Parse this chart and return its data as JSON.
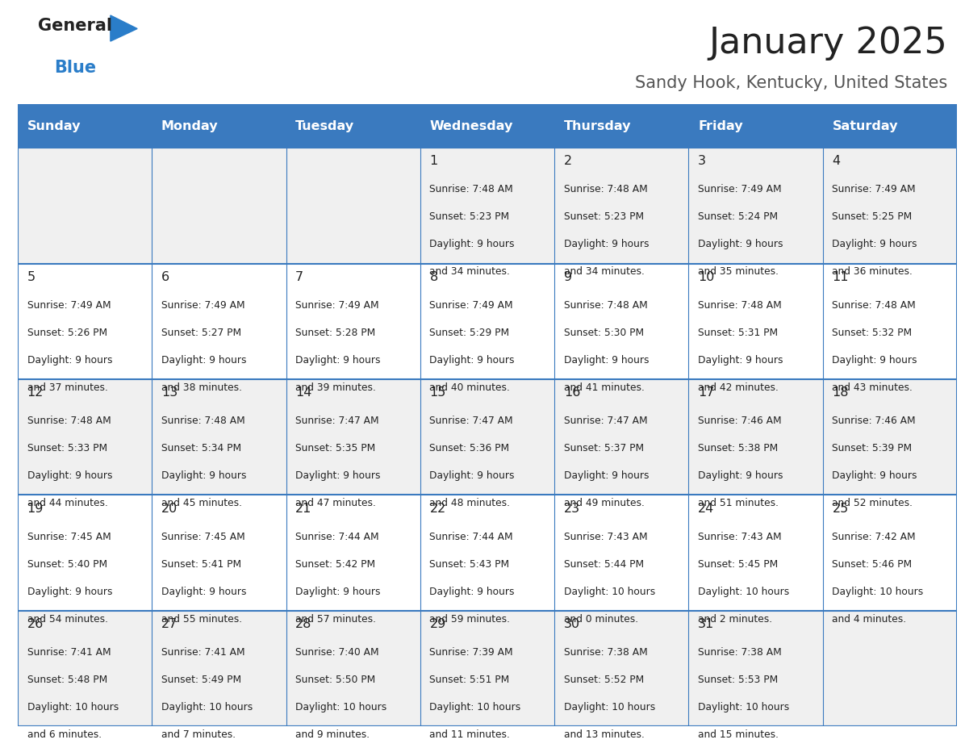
{
  "title": "January 2025",
  "subtitle": "Sandy Hook, Kentucky, United States",
  "days_of_week": [
    "Sunday",
    "Monday",
    "Tuesday",
    "Wednesday",
    "Thursday",
    "Friday",
    "Saturday"
  ],
  "header_bg": "#3a7abf",
  "header_text": "#ffffff",
  "row_bg_odd": "#f0f0f0",
  "row_bg_even": "#ffffff",
  "cell_border": "#3a7abf",
  "day_num_color": "#222222",
  "content_color": "#222222",
  "title_color": "#222222",
  "subtitle_color": "#555555",
  "logo_general_color": "#222222",
  "logo_blue_color": "#2a7dc9",
  "logo_triangle_color": "#2a7dc9",
  "calendar_data": [
    [
      null,
      null,
      null,
      {
        "day": 1,
        "sunrise": "7:48 AM",
        "sunset": "5:23 PM",
        "daylight_h": "9 hours",
        "daylight_m": "and 34 minutes."
      },
      {
        "day": 2,
        "sunrise": "7:48 AM",
        "sunset": "5:23 PM",
        "daylight_h": "9 hours",
        "daylight_m": "and 34 minutes."
      },
      {
        "day": 3,
        "sunrise": "7:49 AM",
        "sunset": "5:24 PM",
        "daylight_h": "9 hours",
        "daylight_m": "and 35 minutes."
      },
      {
        "day": 4,
        "sunrise": "7:49 AM",
        "sunset": "5:25 PM",
        "daylight_h": "9 hours",
        "daylight_m": "and 36 minutes."
      }
    ],
    [
      {
        "day": 5,
        "sunrise": "7:49 AM",
        "sunset": "5:26 PM",
        "daylight_h": "9 hours",
        "daylight_m": "and 37 minutes."
      },
      {
        "day": 6,
        "sunrise": "7:49 AM",
        "sunset": "5:27 PM",
        "daylight_h": "9 hours",
        "daylight_m": "and 38 minutes."
      },
      {
        "day": 7,
        "sunrise": "7:49 AM",
        "sunset": "5:28 PM",
        "daylight_h": "9 hours",
        "daylight_m": "and 39 minutes."
      },
      {
        "day": 8,
        "sunrise": "7:49 AM",
        "sunset": "5:29 PM",
        "daylight_h": "9 hours",
        "daylight_m": "and 40 minutes."
      },
      {
        "day": 9,
        "sunrise": "7:48 AM",
        "sunset": "5:30 PM",
        "daylight_h": "9 hours",
        "daylight_m": "and 41 minutes."
      },
      {
        "day": 10,
        "sunrise": "7:48 AM",
        "sunset": "5:31 PM",
        "daylight_h": "9 hours",
        "daylight_m": "and 42 minutes."
      },
      {
        "day": 11,
        "sunrise": "7:48 AM",
        "sunset": "5:32 PM",
        "daylight_h": "9 hours",
        "daylight_m": "and 43 minutes."
      }
    ],
    [
      {
        "day": 12,
        "sunrise": "7:48 AM",
        "sunset": "5:33 PM",
        "daylight_h": "9 hours",
        "daylight_m": "and 44 minutes."
      },
      {
        "day": 13,
        "sunrise": "7:48 AM",
        "sunset": "5:34 PM",
        "daylight_h": "9 hours",
        "daylight_m": "and 45 minutes."
      },
      {
        "day": 14,
        "sunrise": "7:47 AM",
        "sunset": "5:35 PM",
        "daylight_h": "9 hours",
        "daylight_m": "and 47 minutes."
      },
      {
        "day": 15,
        "sunrise": "7:47 AM",
        "sunset": "5:36 PM",
        "daylight_h": "9 hours",
        "daylight_m": "and 48 minutes."
      },
      {
        "day": 16,
        "sunrise": "7:47 AM",
        "sunset": "5:37 PM",
        "daylight_h": "9 hours",
        "daylight_m": "and 49 minutes."
      },
      {
        "day": 17,
        "sunrise": "7:46 AM",
        "sunset": "5:38 PM",
        "daylight_h": "9 hours",
        "daylight_m": "and 51 minutes."
      },
      {
        "day": 18,
        "sunrise": "7:46 AM",
        "sunset": "5:39 PM",
        "daylight_h": "9 hours",
        "daylight_m": "and 52 minutes."
      }
    ],
    [
      {
        "day": 19,
        "sunrise": "7:45 AM",
        "sunset": "5:40 PM",
        "daylight_h": "9 hours",
        "daylight_m": "and 54 minutes."
      },
      {
        "day": 20,
        "sunrise": "7:45 AM",
        "sunset": "5:41 PM",
        "daylight_h": "9 hours",
        "daylight_m": "and 55 minutes."
      },
      {
        "day": 21,
        "sunrise": "7:44 AM",
        "sunset": "5:42 PM",
        "daylight_h": "9 hours",
        "daylight_m": "and 57 minutes."
      },
      {
        "day": 22,
        "sunrise": "7:44 AM",
        "sunset": "5:43 PM",
        "daylight_h": "9 hours",
        "daylight_m": "and 59 minutes."
      },
      {
        "day": 23,
        "sunrise": "7:43 AM",
        "sunset": "5:44 PM",
        "daylight_h": "10 hours",
        "daylight_m": "and 0 minutes."
      },
      {
        "day": 24,
        "sunrise": "7:43 AM",
        "sunset": "5:45 PM",
        "daylight_h": "10 hours",
        "daylight_m": "and 2 minutes."
      },
      {
        "day": 25,
        "sunrise": "7:42 AM",
        "sunset": "5:46 PM",
        "daylight_h": "10 hours",
        "daylight_m": "and 4 minutes."
      }
    ],
    [
      {
        "day": 26,
        "sunrise": "7:41 AM",
        "sunset": "5:48 PM",
        "daylight_h": "10 hours",
        "daylight_m": "and 6 minutes."
      },
      {
        "day": 27,
        "sunrise": "7:41 AM",
        "sunset": "5:49 PM",
        "daylight_h": "10 hours",
        "daylight_m": "and 7 minutes."
      },
      {
        "day": 28,
        "sunrise": "7:40 AM",
        "sunset": "5:50 PM",
        "daylight_h": "10 hours",
        "daylight_m": "and 9 minutes."
      },
      {
        "day": 29,
        "sunrise": "7:39 AM",
        "sunset": "5:51 PM",
        "daylight_h": "10 hours",
        "daylight_m": "and 11 minutes."
      },
      {
        "day": 30,
        "sunrise": "7:38 AM",
        "sunset": "5:52 PM",
        "daylight_h": "10 hours",
        "daylight_m": "and 13 minutes."
      },
      {
        "day": 31,
        "sunrise": "7:38 AM",
        "sunset": "5:53 PM",
        "daylight_h": "10 hours",
        "daylight_m": "and 15 minutes."
      },
      null
    ]
  ]
}
